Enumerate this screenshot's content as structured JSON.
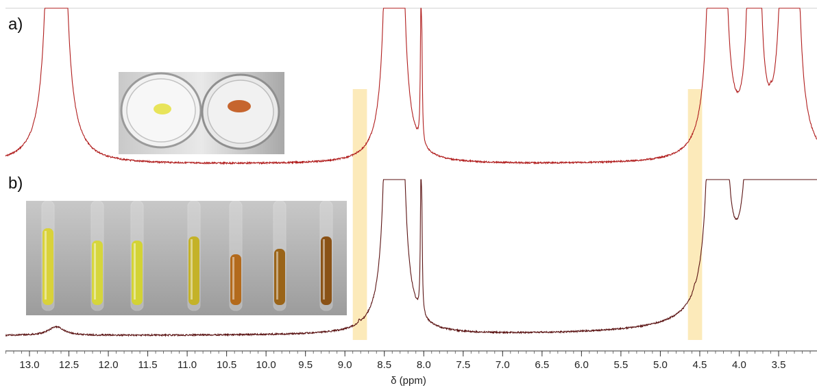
{
  "chart_data": [
    {
      "type": "line",
      "panel_label": "a)",
      "xlabel": "δ (ppm)",
      "xlim": [
        13.3,
        3.1
      ],
      "x_reversed": true,
      "color": "#b01c1c",
      "peaks": [
        {
          "x": 12.66,
          "height": "off-scale",
          "width": 0.02
        },
        {
          "x": 8.41,
          "height": "off-scale",
          "width": 0.012
        },
        {
          "x": 8.34,
          "height": "off-scale",
          "width": 0.012
        },
        {
          "x": 8.03,
          "height": 0.92,
          "width": 0.008,
          "multiplet": "doublet"
        },
        {
          "x": 4.28,
          "height": "off-scale",
          "width": 0.01,
          "multiplet": "triplet"
        },
        {
          "x": 3.81,
          "height": "off-scale",
          "width": 0.012
        },
        {
          "x": 3.6,
          "height": 0.03,
          "width": 0.01
        },
        {
          "x": 3.36,
          "height": "off-scale",
          "width": 0.01,
          "multiplet": "triplet"
        }
      ],
      "inset_photo": "two petri dishes: yellow powder and orange-brown powder"
    },
    {
      "type": "line",
      "panel_label": "b)",
      "xlabel": "δ (ppm)",
      "xlim": [
        13.3,
        3.1
      ],
      "x_reversed": true,
      "color": "#5a1212",
      "peaks": [
        {
          "x": 12.66,
          "height": 0.06,
          "width": 0.12,
          "shape": "broad"
        },
        {
          "x": 8.82,
          "height": 0.02,
          "width": 0.01
        },
        {
          "x": 8.41,
          "height": "off-scale",
          "width": 0.012
        },
        {
          "x": 8.34,
          "height": "off-scale",
          "width": 0.012
        },
        {
          "x": 8.03,
          "height": 0.92,
          "width": 0.008,
          "multiplet": "doublet"
        },
        {
          "x": 4.57,
          "height": 0.02,
          "width": 0.01
        },
        {
          "x": 4.28,
          "height": "off-scale",
          "width": 0.01,
          "multiplet": "triplet"
        },
        {
          "x": 3.81,
          "height": "off-scale",
          "width": 0.012
        },
        {
          "x": 3.6,
          "height": 0.03,
          "width": 0.01
        },
        {
          "x": 3.37,
          "height": "off-scale",
          "width": 0.05,
          "shape": "broad"
        }
      ],
      "inset_photo": "seven NMR tubes, yellow to orange-brown solutions"
    }
  ],
  "x_axis": {
    "ticks": [
      13.0,
      12.5,
      12.0,
      11.5,
      11.0,
      10.5,
      10.0,
      9.5,
      9.0,
      8.5,
      8.0,
      7.5,
      7.0,
      6.5,
      6.0,
      5.5,
      5.0,
      4.5,
      4.0,
      3.5
    ],
    "tick_labels": [
      "13.0",
      "12.5",
      "12.0",
      "11.5",
      "11.0",
      "10.5",
      "10.0",
      "9.5",
      "9.0",
      "8.5",
      "8.0",
      "7.5",
      "7.0",
      "6.5",
      "6.0",
      "5.5",
      "5.0",
      "4.5",
      "4.0",
      "3.5"
    ],
    "minor_step": 0.1
  },
  "highlights": [
    {
      "from": 8.9,
      "to": 8.72,
      "color": "#fbe3a3"
    },
    {
      "from": 4.65,
      "to": 4.47,
      "color": "#fbe3a3"
    }
  ],
  "tube_colors": [
    "#d9d23a",
    "#d6d63c",
    "#d3d335",
    "#c4b228",
    "#b36a1c",
    "#9a6418",
    "#8a5216"
  ],
  "dish_colors": [
    "#e8e45a",
    "#c6652e"
  ]
}
